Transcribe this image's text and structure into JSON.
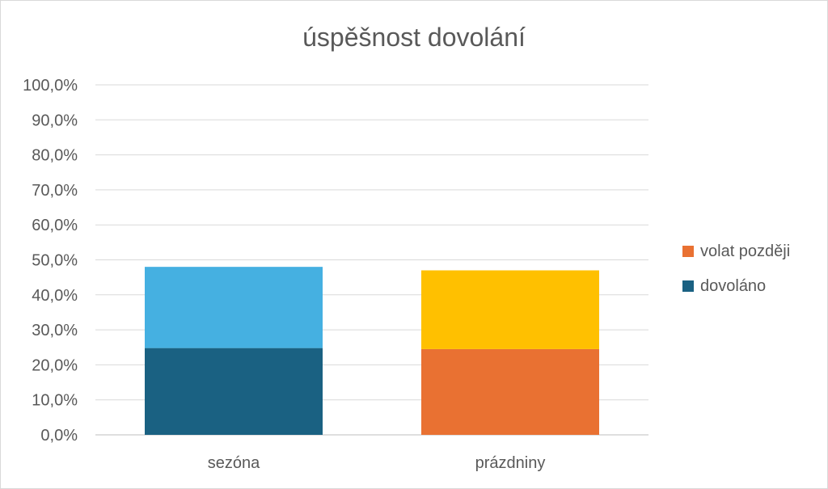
{
  "chart_data": {
    "type": "bar",
    "stacked": true,
    "title": "úspěšnost dovolání",
    "categories": [
      "sezóna",
      "prázdniny"
    ],
    "y_tick_labels": [
      "0,0%",
      "10,0%",
      "20,0%",
      "30,0%",
      "40,0%",
      "50,0%",
      "60,0%",
      "70,0%",
      "80,0%",
      "90,0%",
      "100,0%"
    ],
    "ylim": [
      0,
      100
    ],
    "grid": true,
    "legend_position": "right",
    "bars": [
      {
        "category": "sezóna",
        "segments": [
          {
            "value": 24.8,
            "color": "#1a6182"
          },
          {
            "value": 23.2,
            "color": "#45b0e1"
          }
        ]
      },
      {
        "category": "prázdniny",
        "segments": [
          {
            "value": 24.5,
            "color": "#e97132"
          },
          {
            "value": 22.5,
            "color": "#ffc000"
          }
        ]
      }
    ],
    "legend": [
      {
        "name": "volat později",
        "color": "#e97132"
      },
      {
        "name": "dovoláno",
        "color": "#1a6182"
      }
    ]
  }
}
